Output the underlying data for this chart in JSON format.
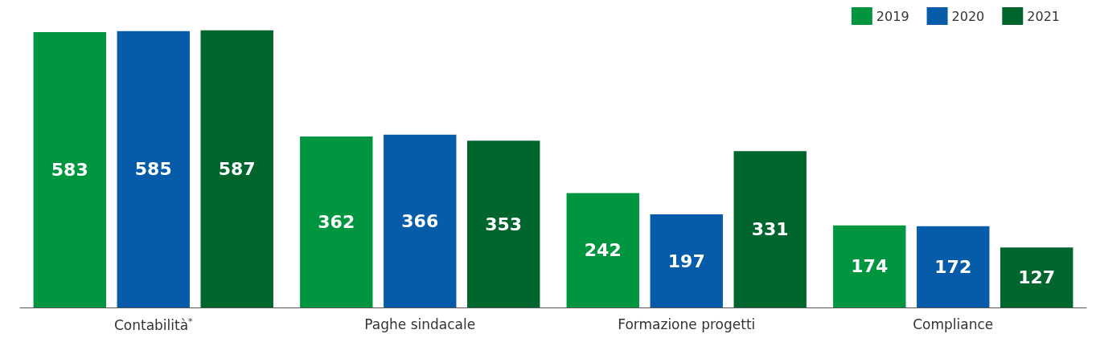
{
  "chart_data": {
    "type": "bar",
    "categories": [
      "Contabilità$^{*}$",
      "Paghe sindacale",
      "Formazione progetti",
      "Compliance"
    ],
    "series": [
      {
        "name": "2019",
        "color": "#00963f",
        "values": [
          583,
          362,
          242,
          174
        ]
      },
      {
        "name": "2020",
        "color": "#065ca8",
        "values": [
          585,
          366,
          197,
          172
        ]
      },
      {
        "name": "2021",
        "color": "#00662e",
        "values": [
          587,
          353,
          331,
          127
        ]
      }
    ],
    "data_labels": true,
    "legend": "top right",
    "grid": false
  }
}
